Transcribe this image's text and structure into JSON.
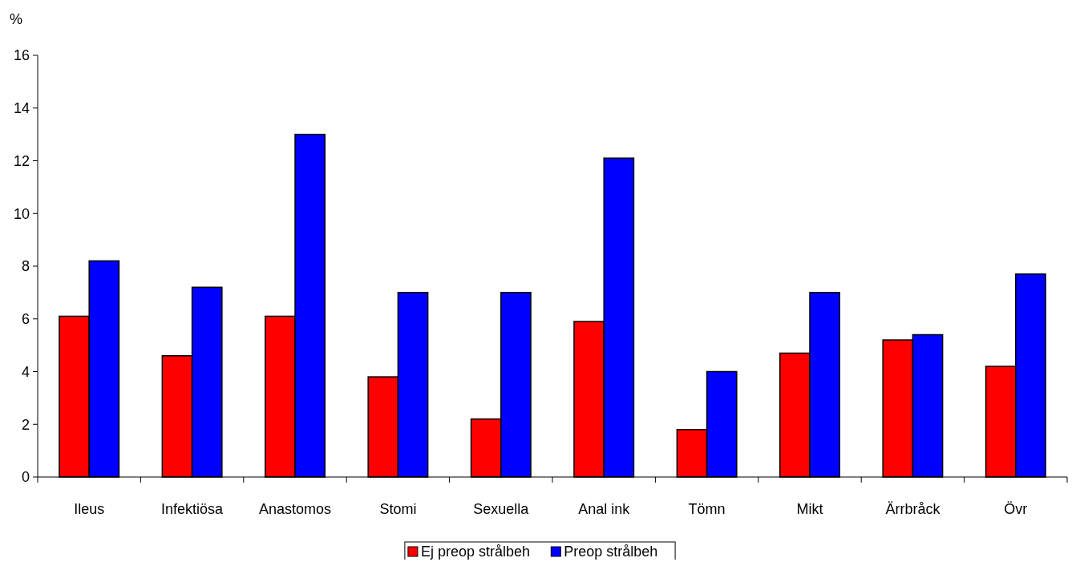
{
  "chart_data": {
    "type": "bar",
    "ylabel": "%",
    "categories": [
      "Ileus",
      "Infektiösa",
      "Anastomos",
      "Stomi",
      "Sexuella",
      "Anal ink",
      "Tömn",
      "Mikt",
      "Ärrbråck",
      "Övr"
    ],
    "series": [
      {
        "name": "Ej preop strålbeh",
        "color": "#ff0000",
        "values": [
          6.1,
          4.6,
          6.1,
          3.8,
          2.2,
          5.9,
          1.8,
          4.7,
          5.2,
          4.2
        ]
      },
      {
        "name": "Preop strålbeh",
        "color": "#0000ff",
        "values": [
          8.2,
          7.2,
          13.0,
          7.0,
          7.0,
          12.1,
          4.0,
          7.0,
          5.4,
          7.7
        ]
      }
    ],
    "ylim": [
      0,
      16
    ],
    "yticks": [
      0,
      2,
      4,
      6,
      8,
      10,
      12,
      14,
      16
    ],
    "grid": false,
    "legend": "bottom"
  }
}
